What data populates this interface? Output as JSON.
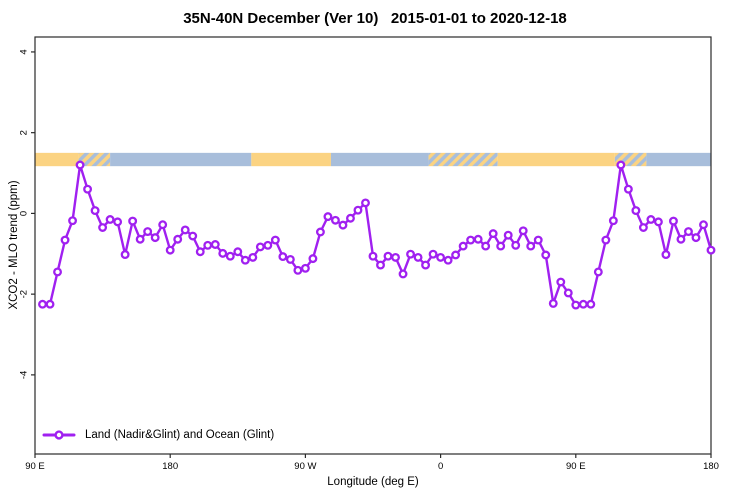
{
  "chart_data": {
    "type": "line",
    "title": "35N-40N December (Ver 10)   2015-01-01 to 2020-12-18",
    "xlabel": "Longitude (deg E)",
    "ylabel": "XCO2 - MLO trend (ppm)",
    "xlim": [
      90,
      540
    ],
    "ylim": [
      -5.96,
      4.37
    ],
    "grid": false,
    "axis_color": "#2a2a2a",
    "x_ticks": [
      {
        "value": 90,
        "label": "90 E"
      },
      {
        "value": 180,
        "label": "180"
      },
      {
        "value": 270,
        "label": "90 W"
      },
      {
        "value": 360,
        "label": "0"
      },
      {
        "value": 450,
        "label": "90 E"
      },
      {
        "value": 540,
        "label": "180"
      }
    ],
    "y_ticks": [
      {
        "value": -4,
        "label": "-4"
      },
      {
        "value": -2,
        "label": "-2"
      },
      {
        "value": 0,
        "label": "0"
      },
      {
        "value": 2,
        "label": "2"
      },
      {
        "value": 4,
        "label": "4"
      }
    ],
    "legend": {
      "position": "bottom-left",
      "entries": [
        {
          "label": "Land (Nadir&Glint) and Ocean (Glint)",
          "color": "#A020F0",
          "marker": "open-circle"
        }
      ]
    },
    "series": [
      {
        "name": "Land (Nadir&Glint) and Ocean (Glint)",
        "color": "#A020F0",
        "marker": "open-circle",
        "x_unit": "deg E (axis wraps past 180 through 90 W, 0, 90 E, 180)",
        "x": [
          95,
          100,
          105,
          110,
          115,
          120,
          125,
          130,
          135,
          140,
          145,
          150,
          155,
          160,
          165,
          170,
          175,
          180,
          185,
          190,
          195,
          200,
          205,
          210,
          215,
          220,
          225,
          230,
          235,
          240,
          245,
          250,
          255,
          260,
          265,
          270,
          275,
          280,
          285,
          290,
          295,
          300,
          305,
          310,
          315,
          320,
          325,
          330,
          335,
          340,
          345,
          350,
          355,
          360,
          365,
          370,
          375,
          380,
          385,
          390,
          395,
          400,
          405,
          410,
          415,
          420,
          425,
          430,
          435,
          440,
          445,
          450,
          455,
          460,
          465,
          470,
          475,
          480,
          485,
          490,
          495,
          500,
          505,
          510,
          515,
          520,
          525,
          530,
          535,
          540
        ],
        "y": [
          -2.25,
          -2.25,
          -1.45,
          -0.66,
          -0.18,
          1.2,
          0.6,
          0.07,
          -0.35,
          -0.15,
          -0.21,
          -1.02,
          -0.19,
          -0.64,
          -0.45,
          -0.6,
          -0.28,
          -0.91,
          -0.64,
          -0.41,
          -0.56,
          -0.95,
          -0.79,
          -0.77,
          -0.99,
          -1.06,
          -0.95,
          -1.16,
          -1.09,
          -0.83,
          -0.79,
          -0.66,
          -1.07,
          -1.14,
          -1.41,
          -1.36,
          -1.12,
          -0.46,
          -0.08,
          -0.17,
          -0.29,
          -0.12,
          0.08,
          0.26,
          -1.06,
          -1.28,
          -1.06,
          -1.09,
          -1.5,
          -1.01,
          -1.09,
          -1.28,
          -1.01,
          -1.09,
          -1.16,
          -1.03,
          -0.81,
          -0.66,
          -0.64,
          -0.81,
          -0.5,
          -0.81,
          -0.54,
          -0.79,
          -0.43,
          -0.81,
          -0.66,
          -1.03,
          -2.23,
          -1.7,
          -1.97,
          -2.27,
          -2.25,
          -2.25,
          -1.45,
          -0.66,
          -0.18,
          1.2,
          0.6,
          0.07,
          -0.35,
          -0.15,
          -0.21,
          -1.02,
          -0.19,
          -0.64,
          -0.45,
          -0.6,
          -0.28,
          -0.91
        ]
      }
    ],
    "surface_band": {
      "description": "land/ocean strip drawn across the plot",
      "value_range": [
        1.17,
        1.5
      ],
      "land_color": "#FBD382",
      "ocean_color": "#A8BEDB",
      "segments": [
        {
          "from": 90,
          "to": 119,
          "type": "land"
        },
        {
          "from": 119,
          "to": 140,
          "type": "mixed-land"
        },
        {
          "from": 140,
          "to": 234,
          "type": "ocean"
        },
        {
          "from": 234,
          "to": 287,
          "type": "land"
        },
        {
          "from": 287,
          "to": 352,
          "type": "ocean"
        },
        {
          "from": 352,
          "to": 398,
          "type": "mixed-ocean"
        },
        {
          "from": 398,
          "to": 476,
          "type": "land"
        },
        {
          "from": 476,
          "to": 497,
          "type": "mixed-land"
        },
        {
          "from": 497,
          "to": 540,
          "type": "ocean"
        }
      ]
    }
  }
}
